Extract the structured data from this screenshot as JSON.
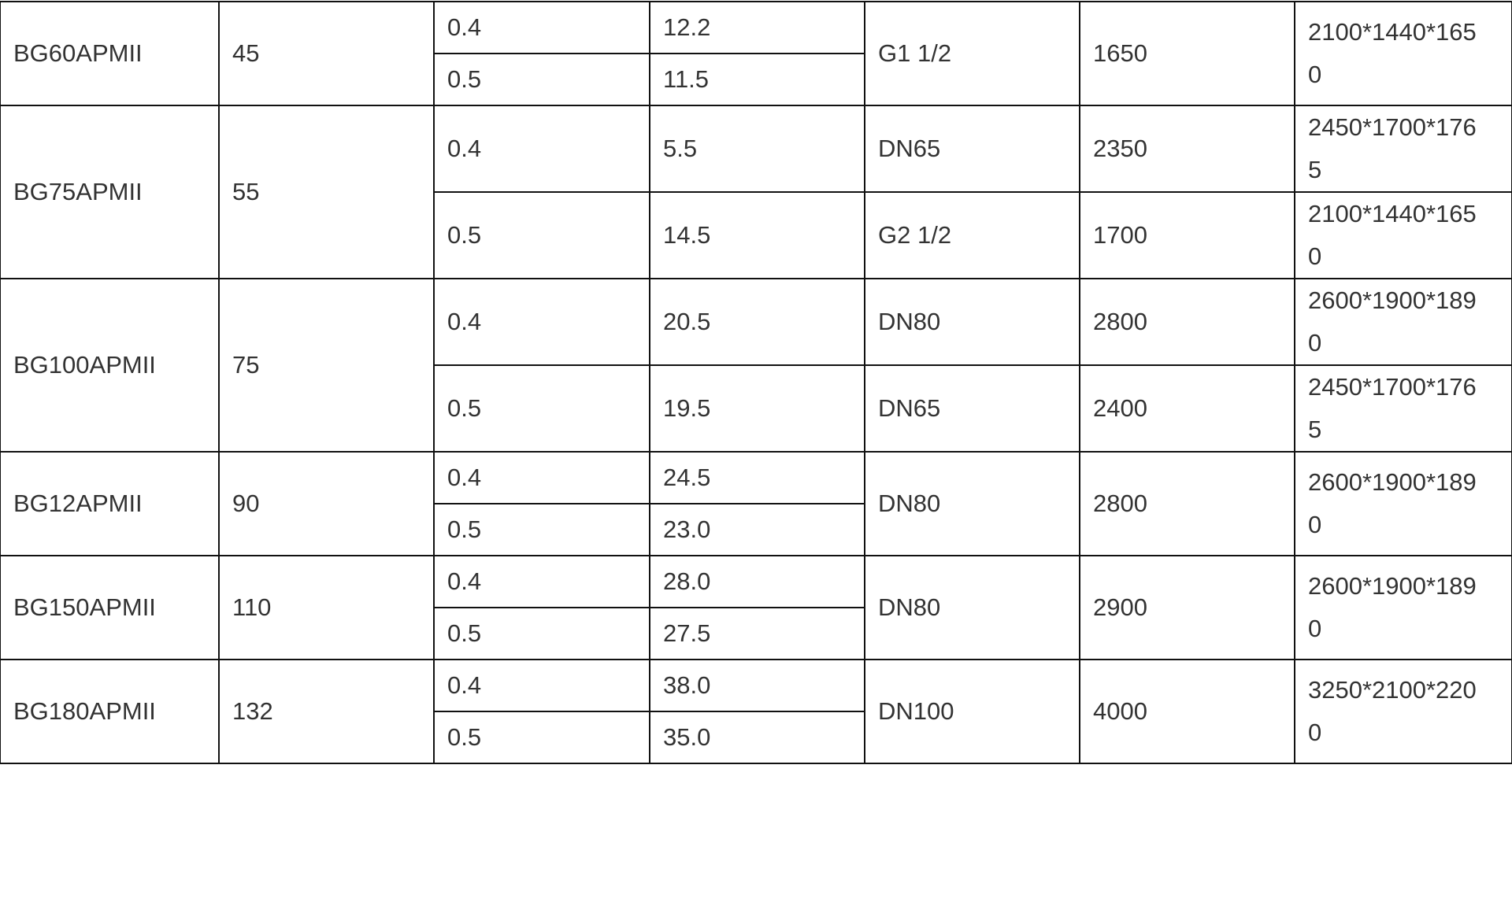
{
  "rows": [
    {
      "model": "BG60APMII",
      "power": "45",
      "sub": [
        {
          "pressure": "0.4",
          "flow": "12.2",
          "outlet": "G1 1/2",
          "weight": "1650",
          "dims": "2100*1440*1650"
        },
        {
          "pressure": "0.5",
          "flow": "11.5"
        }
      ],
      "merged": true
    },
    {
      "model": "BG75APMII",
      "power": "55",
      "sub": [
        {
          "pressure": "0.4",
          "flow": "5.5",
          "outlet": "DN65",
          "weight": "2350",
          "dims": "2450*1700*1765"
        },
        {
          "pressure": "0.5",
          "flow": "14.5",
          "outlet": "G2 1/2",
          "weight": "1700",
          "dims": "2100*1440*1650"
        }
      ],
      "merged": false
    },
    {
      "model": "BG100APMII",
      "power": "75",
      "sub": [
        {
          "pressure": "0.4",
          "flow": "20.5",
          "outlet": "DN80",
          "weight": "2800",
          "dims": "2600*1900*1890"
        },
        {
          "pressure": "0.5",
          "flow": "19.5",
          "outlet": "DN65",
          "weight": "2400",
          "dims": "2450*1700*1765"
        }
      ],
      "merged": false
    },
    {
      "model": "BG12APMII",
      "power": "90",
      "sub": [
        {
          "pressure": "0.4",
          "flow": "24.5",
          "outlet": "DN80",
          "weight": "2800",
          "dims": "2600*1900*1890"
        },
        {
          "pressure": "0.5",
          "flow": "23.0"
        }
      ],
      "merged": true
    },
    {
      "model": "BG150APMII",
      "power": "110",
      "sub": [
        {
          "pressure": "0.4",
          "flow": "28.0",
          "outlet": "DN80",
          "weight": "2900",
          "dims": "2600*1900*1890"
        },
        {
          "pressure": "0.5",
          "flow": "27.5"
        }
      ],
      "merged": true
    },
    {
      "model": "BG180APMII",
      "power": "132",
      "sub": [
        {
          "pressure": "0.4",
          "flow": "38.0",
          "outlet": "DN100",
          "weight": "4000",
          "dims": "3250*2100*2200"
        },
        {
          "pressure": "0.5",
          "flow": "35.0"
        }
      ],
      "merged": true
    }
  ]
}
